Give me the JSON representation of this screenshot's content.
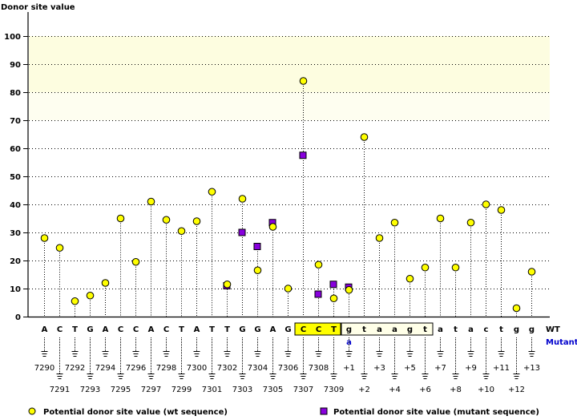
{
  "chart_data": {
    "type": "scatter",
    "title": "Donor site value",
    "ylabel": "Donor site value",
    "ylim": [
      0,
      100
    ],
    "yticks": [
      0,
      10,
      20,
      30,
      40,
      50,
      60,
      70,
      80,
      90,
      100
    ],
    "grid": true,
    "highlight_bands": [
      {
        "from": 80,
        "to": 100,
        "color": "#fdfde0"
      },
      {
        "from": 70,
        "to": 80,
        "color": "#fefef0"
      }
    ],
    "positions": [
      "7290",
      "7291",
      "7292",
      "7293",
      "7294",
      "7295",
      "7296",
      "7297",
      "7298",
      "7299",
      "7300",
      "7301",
      "7302",
      "7303",
      "7304",
      "7305",
      "7306",
      "7307",
      "7308",
      "7309",
      "+1",
      "+2",
      "+3",
      "+4",
      "+5",
      "+6",
      "+7",
      "+8",
      "+9",
      "+10",
      "+11",
      "+12",
      "+13"
    ],
    "wt_sequence": [
      "A",
      "C",
      "T",
      "G",
      "A",
      "C",
      "C",
      "A",
      "C",
      "T",
      "A",
      "T",
      "T",
      "G",
      "G",
      "A",
      "G",
      "C",
      "C",
      "T",
      "g",
      "t",
      "a",
      "a",
      "g",
      "t",
      "a",
      "t",
      "a",
      "c",
      "t",
      "g",
      "g"
    ],
    "mutant_sequence": [
      "",
      "",
      "",
      "",
      "",
      "",
      "",
      "",
      "",
      "",
      "",
      "",
      "",
      "",
      "",
      "",
      "",
      "",
      "",
      "",
      "a",
      "",
      "",
      "",
      "",
      "",
      "",
      "",
      "",
      "",
      "",
      "",
      ""
    ],
    "exon_highlight": [
      17,
      19
    ],
    "intron_box": [
      20,
      25
    ],
    "row_labels": {
      "wt": "WT",
      "mutant": "Mutant"
    },
    "series": [
      {
        "name": "Potential donor site value (wt sequence)",
        "marker": "circle",
        "color": "#ffff00",
        "values": [
          28,
          24.5,
          5.5,
          7.5,
          12,
          35,
          19.5,
          41,
          34.5,
          30.5,
          34,
          44.5,
          11.5,
          42,
          16.5,
          32,
          10,
          84,
          18.5,
          6.5,
          9.5,
          64,
          28,
          33.5,
          13.5,
          17.5,
          35,
          17.5,
          33.5,
          40,
          38,
          3,
          16
        ]
      },
      {
        "name": "Potential donor site value (mutant sequence)",
        "marker": "square",
        "color": "#8800dd",
        "values": [
          null,
          null,
          null,
          null,
          null,
          null,
          null,
          null,
          null,
          null,
          null,
          null,
          11,
          30,
          25,
          33.5,
          null,
          57.5,
          8,
          11.5,
          10.5,
          null,
          null,
          null,
          null,
          null,
          null,
          null,
          null,
          null,
          null,
          null,
          null
        ]
      }
    ],
    "legend_position": "bottom"
  }
}
